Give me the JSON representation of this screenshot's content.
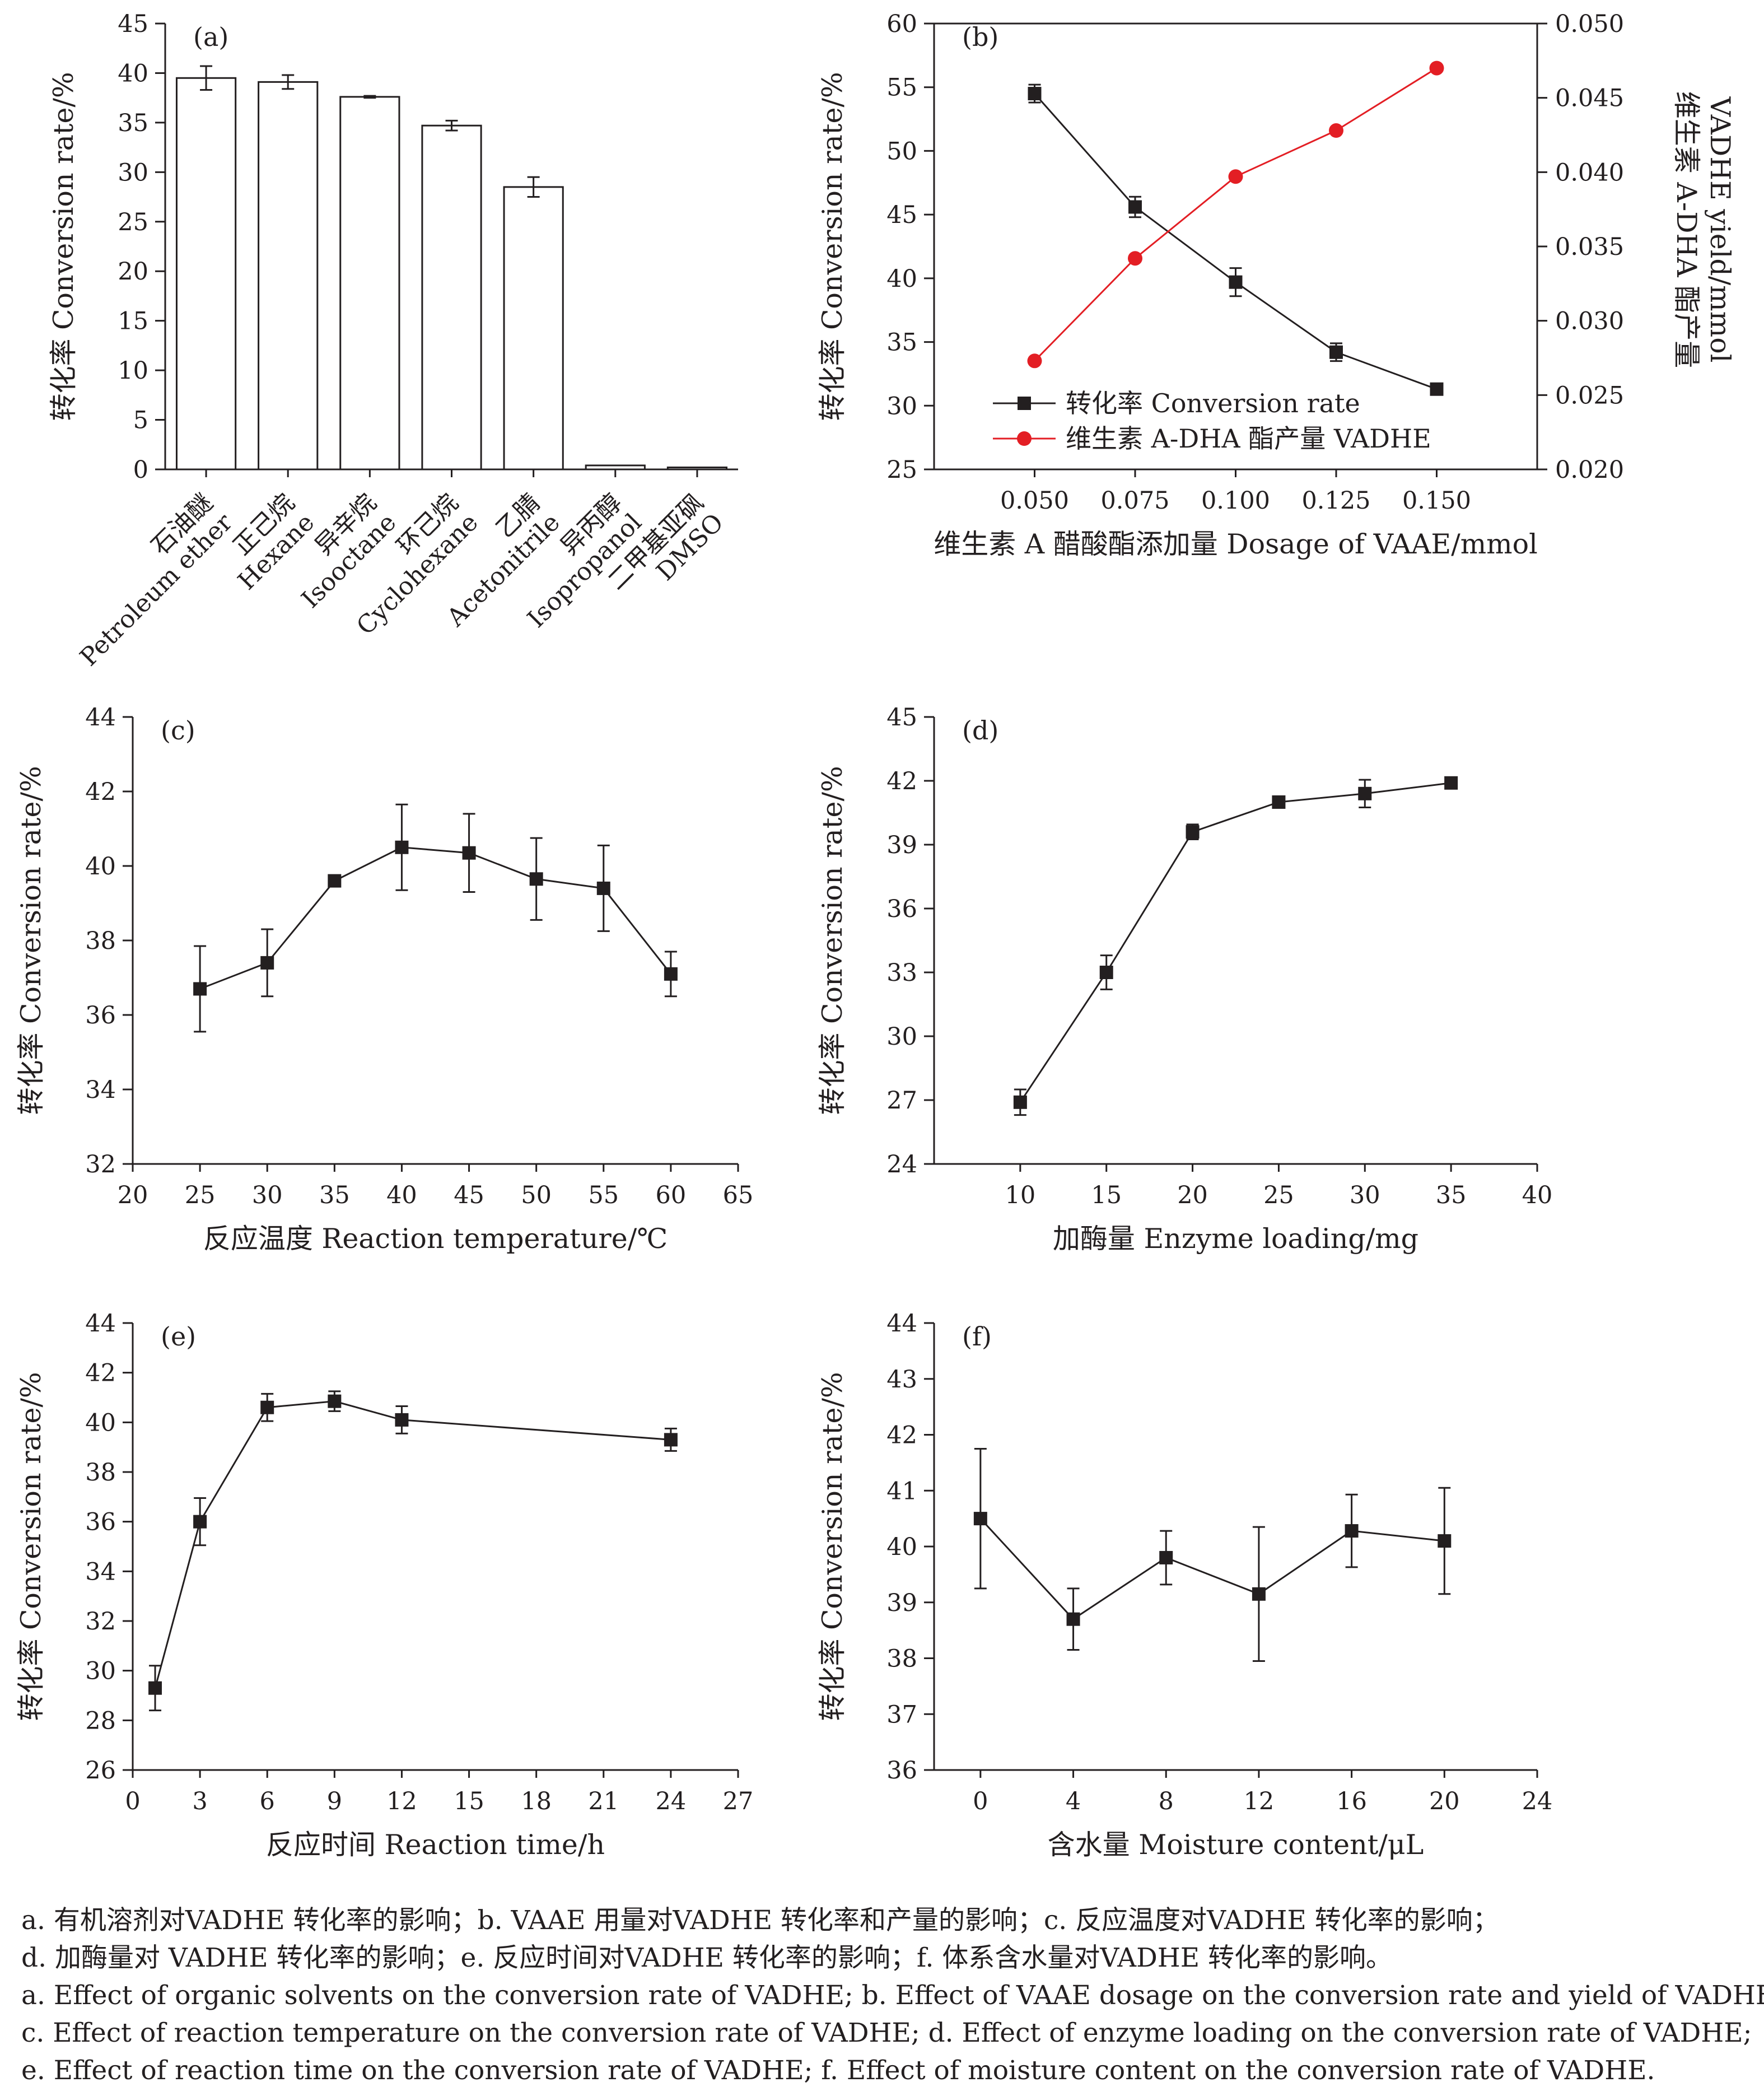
{
  "chart_data": [
    {
      "id": "a",
      "type": "bar",
      "panel_label": "(a)",
      "ylabel": "转化率 Conversion rate/%",
      "ylim": [
        0,
        45
      ],
      "yticks": [
        0,
        5,
        10,
        15,
        20,
        25,
        30,
        35,
        40,
        45
      ],
      "categories": [
        "石油醚 Petroleum ether",
        "正己烷 Hexane",
        "异辛烷 Isooctane",
        "环己烷 Cyclohexane",
        "乙腈 Acetonitrile",
        "异丙醇 Isopropanol",
        "二甲基亚砜 DMSO"
      ],
      "category_lines": [
        [
          "石油醚",
          "Petroleum ether"
        ],
        [
          "正己烷",
          "Hexane"
        ],
        [
          "异辛烷",
          "Isooctane"
        ],
        [
          "环己烷",
          "Cyclohexane"
        ],
        [
          "乙腈",
          "Acetonitrile"
        ],
        [
          "异丙醇",
          "Isopropanol"
        ],
        [
          "二甲基亚砜",
          "DMSO"
        ]
      ],
      "values": [
        39.5,
        39.1,
        37.6,
        34.7,
        28.5,
        0.4,
        0.2
      ],
      "errors": [
        1.2,
        0.7,
        0.1,
        0.5,
        1.0,
        0,
        0
      ],
      "grid": false,
      "bar_fill": "#ffffff",
      "bar_stroke": "#231f20"
    },
    {
      "id": "b",
      "type": "line",
      "panel_label": "(b)",
      "xlabel": "维生素 A 醋酸酯添加量 Dosage of VAAE/mmol",
      "ylabel": "转化率 Conversion rate/%",
      "y2label_lines": [
        "维生素 A-DHA 酯产量",
        "VADHE yield/mmol"
      ],
      "x": [
        0.05,
        0.075,
        0.1,
        0.125,
        0.15
      ],
      "xlim": [
        0.025,
        0.175
      ],
      "xticks": [
        "0.050",
        "0.075",
        "0.100",
        "0.125",
        "0.150"
      ],
      "ylim": [
        25,
        60
      ],
      "yticks": [
        25,
        30,
        35,
        40,
        45,
        50,
        55,
        60
      ],
      "y2lim": [
        0.02,
        0.05
      ],
      "y2ticks": [
        "0.020",
        "0.025",
        "0.030",
        "0.035",
        "0.040",
        "0.045",
        "0.050"
      ],
      "legend_position": "lower-left",
      "grid": false,
      "series": [
        {
          "name": "转化率 Conversion rate",
          "axis": "left",
          "marker": "square",
          "color": "#231f20",
          "values": [
            54.5,
            45.6,
            39.7,
            34.2,
            31.3
          ],
          "errors": [
            0.7,
            0.8,
            1.1,
            0.7,
            0.3
          ]
        },
        {
          "name": "维生素 A-DHA 酯产量 VADHE",
          "axis": "right",
          "marker": "circle",
          "color": "#e31e24",
          "values": [
            0.0273,
            0.0342,
            0.0397,
            0.0428,
            0.047
          ],
          "errors": [
            0,
            0,
            0,
            0,
            0
          ]
        }
      ]
    },
    {
      "id": "c",
      "type": "line",
      "panel_label": "(c)",
      "xlabel": "反应温度 Reaction temperature/℃",
      "ylabel": "转化率 Conversion rate/%",
      "xlim": [
        20,
        65
      ],
      "xticks": [
        20,
        25,
        30,
        35,
        40,
        45,
        50,
        55,
        60,
        65
      ],
      "ylim": [
        32,
        44
      ],
      "yticks": [
        32,
        34,
        36,
        38,
        40,
        42,
        44
      ],
      "grid": false,
      "series": [
        {
          "marker": "square",
          "color": "#231f20",
          "x": [
            25,
            30,
            35,
            40,
            45,
            50,
            55,
            60
          ],
          "values": [
            36.7,
            37.4,
            39.6,
            40.5,
            40.35,
            39.65,
            39.4,
            37.1
          ],
          "errors": [
            1.15,
            0.9,
            0.15,
            1.15,
            1.05,
            1.1,
            1.15,
            0.6
          ]
        }
      ]
    },
    {
      "id": "d",
      "type": "line",
      "panel_label": "(d)",
      "xlabel": "加酶量 Enzyme loading/mg",
      "ylabel": "转化率 Conversion rate/%",
      "xlim": [
        5,
        40
      ],
      "xticks": [
        10,
        15,
        20,
        25,
        30,
        35,
        40
      ],
      "ylim": [
        24,
        45
      ],
      "yticks": [
        24,
        27,
        30,
        33,
        36,
        39,
        42,
        45
      ],
      "grid": false,
      "series": [
        {
          "marker": "square",
          "color": "#231f20",
          "x": [
            10,
            15,
            20,
            25,
            30,
            35
          ],
          "values": [
            26.9,
            33.0,
            39.6,
            41.0,
            41.4,
            41.9
          ],
          "errors": [
            0.6,
            0.8,
            0.35,
            0.1,
            0.65,
            0.1
          ]
        }
      ]
    },
    {
      "id": "e",
      "type": "line",
      "panel_label": "(e)",
      "xlabel": "反应时间 Reaction time/h",
      "ylabel": "转化率 Conversion rate/%",
      "xlim": [
        0,
        27
      ],
      "xticks": [
        0,
        3,
        6,
        9,
        12,
        15,
        18,
        21,
        24,
        27
      ],
      "ylim": [
        26,
        44
      ],
      "yticks": [
        26,
        28,
        30,
        32,
        34,
        36,
        38,
        40,
        42,
        44
      ],
      "grid": false,
      "series": [
        {
          "marker": "square",
          "color": "#231f20",
          "x": [
            1,
            3,
            6,
            9,
            12,
            24
          ],
          "values": [
            29.3,
            36.0,
            40.6,
            40.85,
            40.1,
            39.3
          ],
          "errors": [
            0.9,
            0.95,
            0.55,
            0.4,
            0.55,
            0.45
          ]
        }
      ]
    },
    {
      "id": "f",
      "type": "line",
      "panel_label": "(f)",
      "xlabel": "含水量 Moisture content/μL",
      "ylabel": "转化率 Conversion rate/%",
      "xlim": [
        -2,
        24
      ],
      "xticks": [
        0,
        4,
        8,
        12,
        16,
        20,
        24
      ],
      "ylim": [
        36,
        44
      ],
      "yticks": [
        36,
        37,
        38,
        39,
        40,
        41,
        42,
        43,
        44
      ],
      "grid": false,
      "series": [
        {
          "marker": "square",
          "color": "#231f20",
          "x": [
            0,
            4,
            8,
            12,
            16,
            20
          ],
          "values": [
            40.5,
            38.7,
            39.8,
            39.15,
            40.28,
            40.1
          ],
          "errors": [
            1.25,
            0.55,
            0.48,
            1.2,
            0.65,
            0.95
          ]
        }
      ]
    }
  ],
  "caption": {
    "line1": "a. 有机溶剂对VADHE 转化率的影响；b. VAAE 用量对VADHE 转化率和产量的影响；c. 反应温度对VADHE 转化率的影响；",
    "line2": "d. 加酶量对 VADHE 转化率的影响；e. 反应时间对VADHE 转化率的影响；f. 体系含水量对VADHE 转化率的影响。",
    "line3": "a. Effect of organic solvents on the conversion rate of VADHE; b. Effect of VAAE dosage on the conversion rate and yield of VADHE;",
    "line4": "c. Effect of reaction temperature on the conversion rate of VADHE; d. Effect of enzyme loading on the conversion rate of VADHE;",
    "line5": "e. Effect of reaction time on the conversion rate of VADHE; f. Effect of moisture content on the conversion rate of VADHE."
  }
}
